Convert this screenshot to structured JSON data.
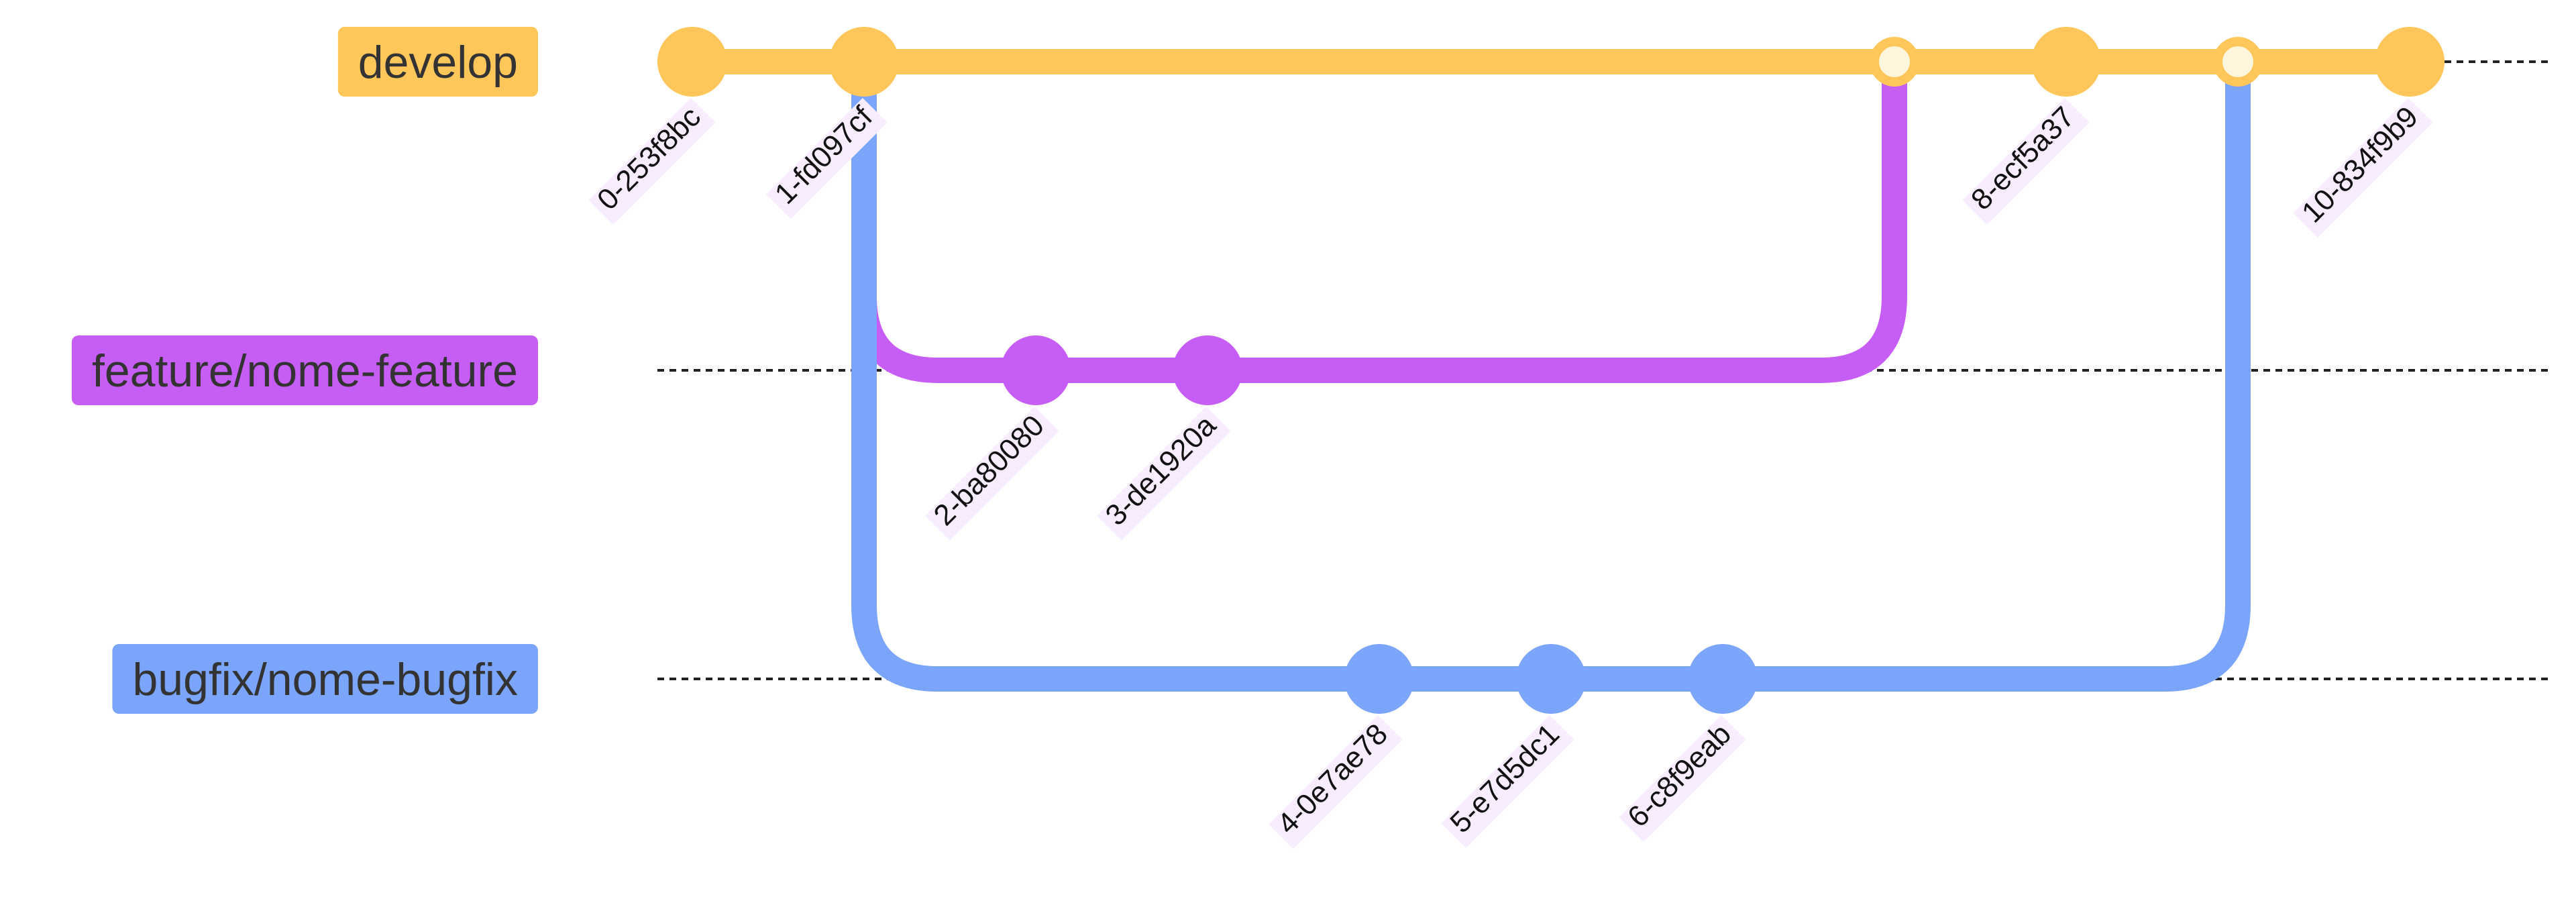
{
  "colors": {
    "develop": "#ffc75a",
    "feature": "#c65ef6",
    "bugfix": "#7ba4fb",
    "merge_fill": "#fff5dc",
    "commit_label_bg": "#f7edfe",
    "branch_label_text": "#333333",
    "dashed_line": "#222222"
  },
  "branches": [
    {
      "id": "develop",
      "name": "develop"
    },
    {
      "id": "feature",
      "name": "feature/nome-feature"
    },
    {
      "id": "bugfix",
      "name": "bugfix/nome-bugfix"
    }
  ],
  "commits": [
    {
      "label": "0-253f8bc",
      "branch": "develop",
      "type": "normal"
    },
    {
      "label": "1-fd097cf",
      "branch": "develop",
      "type": "normal"
    },
    {
      "label": "2-ba80080",
      "branch": "feature",
      "type": "normal"
    },
    {
      "label": "3-de1920a",
      "branch": "feature",
      "type": "normal"
    },
    {
      "label": "4-0e7ae78",
      "branch": "bugfix",
      "type": "normal"
    },
    {
      "label": "5-e7d5dc1",
      "branch": "bugfix",
      "type": "normal"
    },
    {
      "label": "6-c8f9eab",
      "branch": "bugfix",
      "type": "normal"
    },
    {
      "label": "",
      "branch": "develop",
      "type": "merge",
      "from": "feature"
    },
    {
      "label": "8-ecf5a37",
      "branch": "develop",
      "type": "normal"
    },
    {
      "label": "",
      "branch": "develop",
      "type": "merge",
      "from": "bugfix"
    },
    {
      "label": "10-834f9b9",
      "branch": "develop",
      "type": "normal"
    }
  ]
}
